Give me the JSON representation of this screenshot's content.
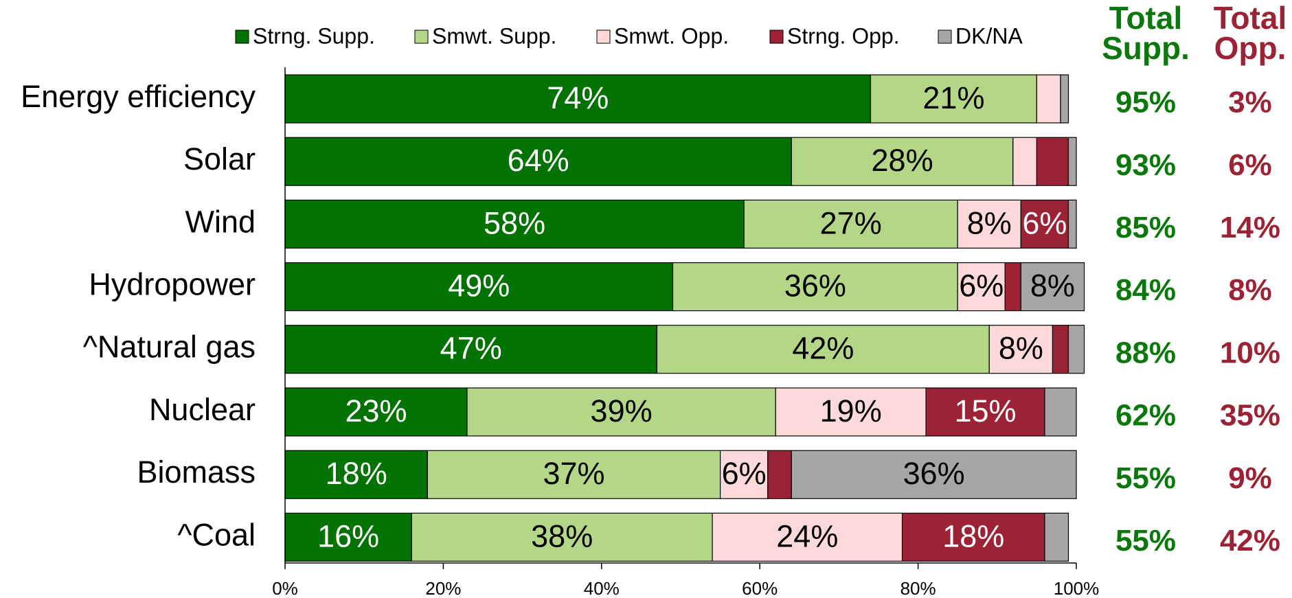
{
  "chart_data": {
    "type": "stacked_bar_horizontal",
    "categories": [
      "Energy efficiency",
      "Solar",
      "Wind",
      "Hydropower",
      "^Natural gas",
      "Nuclear",
      "Biomass",
      "^Coal"
    ],
    "series": [
      {
        "name": "Strng. Supp.",
        "color": "#027202",
        "label_color": "#ffffff",
        "values": [
          74,
          64,
          58,
          49,
          47,
          23,
          18,
          16
        ],
        "value_labels": [
          "74%",
          "64%",
          "58%",
          "49%",
          "47%",
          "23%",
          "18%",
          "16%"
        ]
      },
      {
        "name": "Smwt. Supp.",
        "color": "#b3d687",
        "label_color": "#000000",
        "values": [
          21,
          28,
          27,
          36,
          42,
          39,
          37,
          38
        ],
        "value_labels": [
          "21%",
          "28%",
          "27%",
          "36%",
          "42%",
          "39%",
          "37%",
          "38%"
        ]
      },
      {
        "name": "Smwt. Opp.",
        "color": "#fdd9d9",
        "label_color": "#000000",
        "values": [
          3,
          3,
          8,
          6,
          8,
          19,
          6,
          24
        ],
        "value_labels": [
          null,
          null,
          "8%",
          "6%",
          "8%",
          "19%",
          "6%",
          "24%"
        ]
      },
      {
        "name": "Strng. Opp.",
        "color": "#9b2335",
        "label_color": "#ffffff",
        "values": [
          0,
          4,
          6,
          2,
          2,
          15,
          3,
          18
        ],
        "value_labels": [
          null,
          null,
          "6%",
          null,
          null,
          "15%",
          null,
          "18%"
        ]
      },
      {
        "name": "DK/NA",
        "color": "#a6a6a6",
        "label_color": "#000000",
        "values": [
          1,
          1,
          1,
          8,
          2,
          4,
          36,
          3
        ],
        "value_labels": [
          null,
          null,
          null,
          "8%",
          null,
          null,
          "36%",
          null
        ]
      }
    ],
    "xlim": [
      0,
      100
    ],
    "xticks": [
      {
        "value": 0,
        "label": "0%"
      },
      {
        "value": 20,
        "label": "20%"
      },
      {
        "value": 40,
        "label": "40%"
      },
      {
        "value": 60,
        "label": "60%"
      },
      {
        "value": 80,
        "label": "80%"
      },
      {
        "value": 100,
        "label": "100%"
      }
    ],
    "totals": [
      {
        "title_lines": [
          "Total",
          "Supp."
        ],
        "color": "#0a780a",
        "values": [
          95,
          93,
          85,
          84,
          88,
          62,
          55,
          55
        ],
        "value_labels": [
          "95%",
          "93%",
          "85%",
          "84%",
          "88%",
          "62%",
          "55%",
          "55%"
        ]
      },
      {
        "title_lines": [
          "Total",
          "Opp."
        ],
        "color": "#9b2335",
        "values": [
          3,
          6,
          14,
          8,
          10,
          35,
          9,
          42
        ],
        "value_labels": [
          "3%",
          "6%",
          "14%",
          "8%",
          "10%",
          "35%",
          "9%",
          "42%"
        ]
      }
    ]
  }
}
